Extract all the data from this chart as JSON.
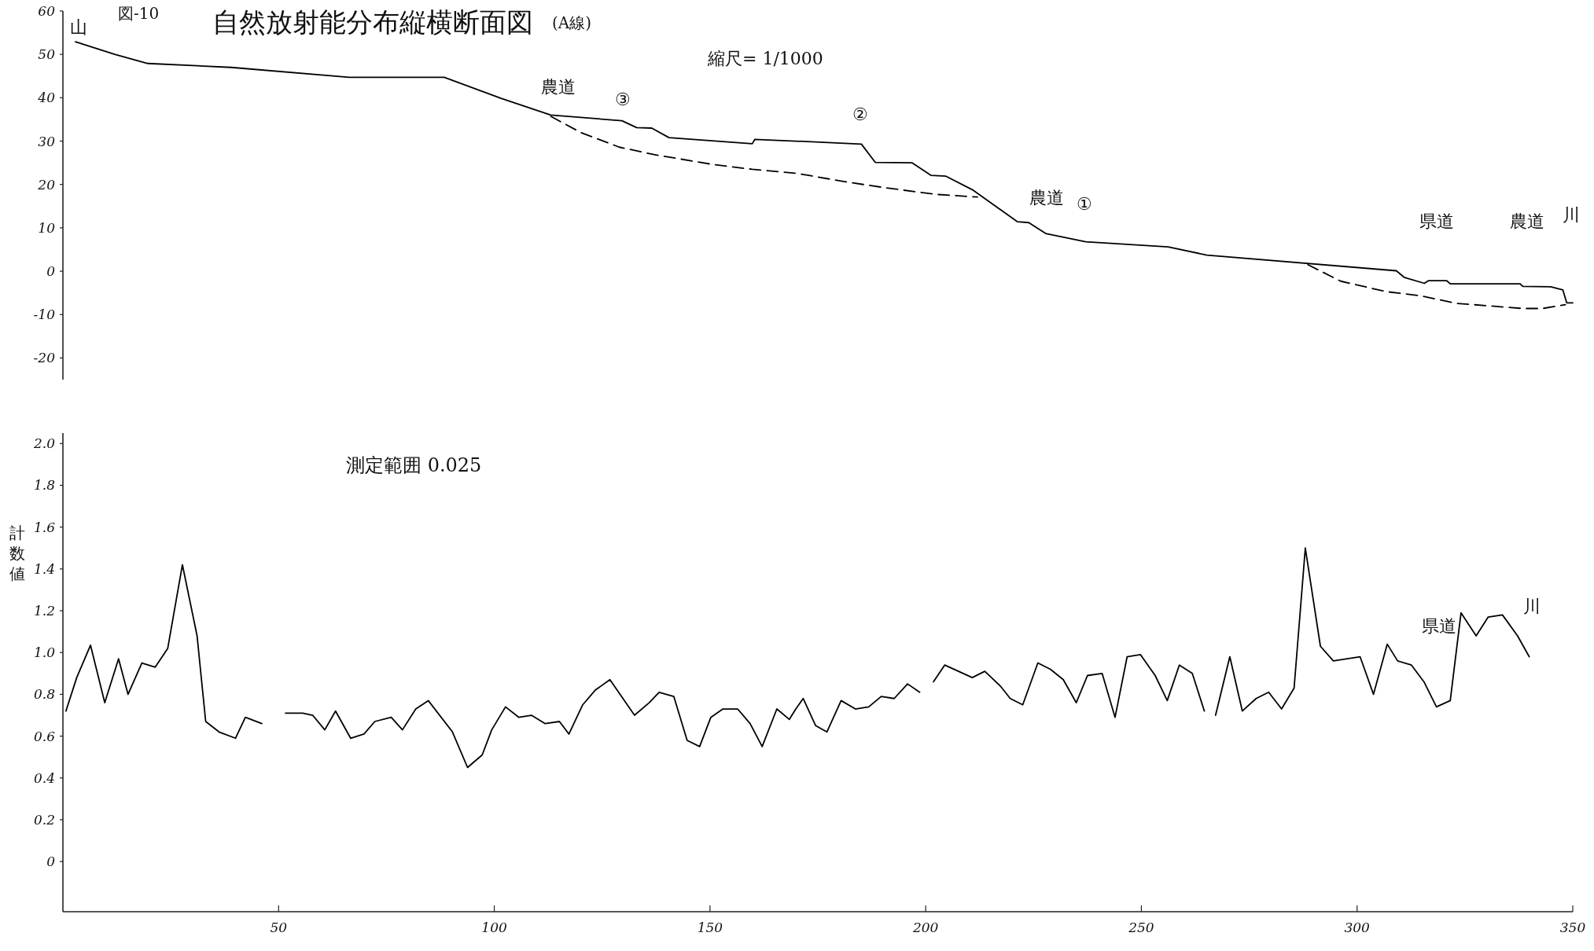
{
  "chart_data": [
    {
      "type": "line",
      "title": "自然放射能分布縦横断面図",
      "subtitle": "(A線)",
      "xlim": [
        0,
        350
      ],
      "ylim": [
        -25,
        60
      ],
      "yticks": [
        60,
        50,
        40,
        30,
        20,
        10,
        0,
        -10,
        -20
      ],
      "tick_labels": "y",
      "series": [
        {
          "color": "#000000",
          "line_style": "solid",
          "x": [
            2.9,
            12,
            19.7,
            39,
            66.4,
            88.4,
            101.7,
            113.1,
            129.6,
            133,
            136.5,
            140.5,
            159.8,
            160.4,
            169.9,
            185.1,
            188.3,
            196.8,
            201.2,
            204.7,
            210.8,
            221.3,
            223.9,
            227.8,
            237.1,
            256.2,
            265.2,
            309.1,
            310.9,
            315.6,
            316.5,
            320.8,
            321.6,
            337.8,
            338.4,
            344.9,
            347.7,
            348.6,
            350
          ],
          "values": [
            52.9,
            50,
            47.9,
            47,
            44.7,
            44.7,
            39.8,
            36,
            34.7,
            33.1,
            33,
            30.8,
            29.4,
            30.4,
            30,
            29.3,
            25.1,
            25,
            22.1,
            21.9,
            18.8,
            11.4,
            11.2,
            8.7,
            6.8,
            5.6,
            3.7,
            0.1,
            -1.4,
            -2.8,
            -2.2,
            -2.2,
            -2.9,
            -2.9,
            -3.5,
            -3.6,
            -4.3,
            -7.3,
            -7.3
          ]
        },
        {
          "color": "#000000",
          "line_style": "dashed",
          "x": [
            113.1,
            120,
            129,
            137,
            150.7,
            159.8,
            169.9,
            181.5,
            190.9,
            202.6,
            212
          ],
          "values": [
            35.7,
            32,
            28.6,
            26.9,
            24.6,
            23.5,
            22.6,
            20.6,
            19.2,
            17.7,
            17.1
          ]
        },
        {
          "color": "#000000",
          "line_style": "dashed",
          "x": [
            288.6,
            296.2,
            306.7,
            314.9,
            322.9,
            338.4,
            343,
            348.3
          ],
          "values": [
            1.5,
            -2.3,
            -4.7,
            -5.7,
            -7.4,
            -8.6,
            -8.6,
            -7.7
          ]
        }
      ],
      "annotations": [
        "図-10",
        "縮尺= 1/1000",
        "山",
        "農道",
        "③",
        "②",
        "農道",
        "①",
        "県道",
        "農道",
        "川"
      ]
    },
    {
      "type": "line",
      "ylabel": "計数値",
      "xlim": [
        0,
        350
      ],
      "ylim": [
        -0.24,
        2.05
      ],
      "xticks": [
        50,
        100,
        150,
        200,
        250,
        300,
        350
      ],
      "yticks": [
        {
          "value": 0,
          "label": "0"
        },
        0.2,
        0.4,
        0.6,
        0.8,
        {
          "value": 1,
          "label": "1.0"
        },
        1.2,
        1.4,
        1.6,
        1.8,
        {
          "value": 2,
          "label": "2.0"
        }
      ],
      "series": [
        {
          "color": "#000000",
          "line_style": "solid",
          "x": [
            0.7,
            3.2,
            6.4,
            9.7,
            12.9,
            15.1,
            18.3,
            21.4,
            24.3,
            27.7,
            31.1,
            33.1,
            36.2,
            40,
            42.3,
            46.1
          ],
          "values": [
            0.72,
            0.88,
            1.035,
            0.76,
            0.97,
            0.8,
            0.95,
            0.93,
            1.02,
            1.42,
            1.08,
            0.67,
            0.62,
            0.59,
            0.69,
            0.66
          ]
        },
        {
          "color": "#000000",
          "line_style": "solid",
          "x": [
            51.6,
            55.6,
            57.9,
            60.7,
            63.2,
            66.7,
            69.8,
            72.3,
            76.1,
            78.7,
            81.8,
            84.7,
            90.3,
            93.8,
            97.2,
            99.4,
            102.6,
            105.7,
            108.6,
            111.8,
            115.1,
            117.3,
            120.5,
            123.4,
            126.8,
            132.5,
            135.9,
            138.2,
            141.6,
            144.7,
            147.6,
            150.2,
            153,
            156.4,
            159.3,
            162.1,
            165.5,
            168.4,
            169.9,
            171.6,
            174.5,
            177.1,
            180.4,
            183.7,
            186.8,
            189.7,
            192.7,
            195.8,
            198.6
          ],
          "values": [
            0.71,
            0.71,
            0.7,
            0.63,
            0.72,
            0.59,
            0.61,
            0.67,
            0.69,
            0.63,
            0.73,
            0.77,
            0.62,
            0.45,
            0.51,
            0.63,
            0.74,
            0.69,
            0.7,
            0.66,
            0.67,
            0.61,
            0.75,
            0.82,
            0.87,
            0.7,
            0.76,
            0.81,
            0.79,
            0.58,
            0.55,
            0.69,
            0.73,
            0.73,
            0.66,
            0.55,
            0.73,
            0.68,
            0.73,
            0.78,
            0.65,
            0.62,
            0.77,
            0.73,
            0.74,
            0.79,
            0.78,
            0.85,
            0.81
          ]
        },
        {
          "color": "#000000",
          "line_style": "solid",
          "x": [
            201.8,
            204.4,
            210.8,
            213.7,
            217.3,
            219.6,
            222.5,
            226,
            228.9,
            231.9,
            234.9,
            237.5,
            240.9,
            243.9,
            246.7,
            249.8,
            253.2,
            256,
            258.8,
            261.8,
            264.6
          ],
          "values": [
            0.86,
            0.94,
            0.88,
            0.91,
            0.84,
            0.78,
            0.75,
            0.95,
            0.92,
            0.87,
            0.76,
            0.89,
            0.9,
            0.69,
            0.98,
            0.99,
            0.89,
            0.77,
            0.94,
            0.9,
            0.72
          ]
        },
        {
          "color": "#000000",
          "line_style": "solid",
          "x": [
            267.2,
            270.5,
            273.4,
            276.6,
            279.5,
            282.5,
            285.4,
            288,
            291.5,
            294.5,
            300.7,
            303.8,
            307,
            309.4,
            312.6,
            315.5,
            318.4,
            321.6,
            324.1,
            327.6,
            330.4,
            333.7,
            337.2,
            339.9
          ],
          "values": [
            0.7,
            0.98,
            0.72,
            0.78,
            0.81,
            0.73,
            0.83,
            1.5,
            1.03,
            0.96,
            0.98,
            0.8,
            1.04,
            0.96,
            0.94,
            0.86,
            0.74,
            0.77,
            1.19,
            1.08,
            1.17,
            1.18,
            1.08,
            0.98
          ]
        }
      ],
      "annotations": [
        "測定範囲 0.025",
        "県道",
        "川"
      ]
    }
  ]
}
